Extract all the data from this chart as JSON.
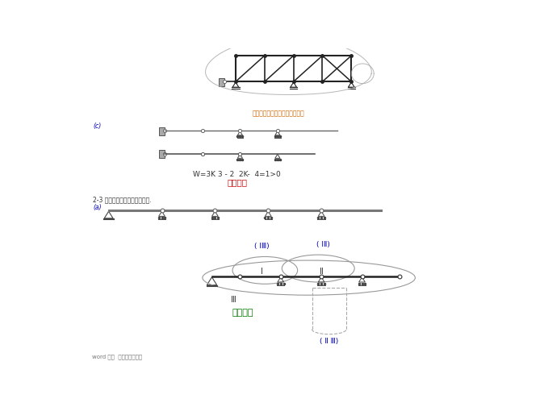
{
  "bg_color": "#ffffff",
  "title_text": "有一个多余约束的几何不变体系",
  "subtitle_text": "2-3 试分析图示体系的几何构造.",
  "label_c": "(c)",
  "label_a": "(a)",
  "formula_text": "W=3K 3 - 2  2K-  4=1>0",
  "formula_text2": "可变体系",
  "lbl_I_III": "( ⅠⅢ)",
  "lbl_I_II": "( ⅠⅡ)",
  "lbl_I": "Ⅰ",
  "lbl_II": "Ⅱ",
  "lbl_III": "Ⅲ",
  "lbl_geom": "几何不变",
  "lbl_II_III": "( Ⅱ Ⅲ)",
  "footer_text": "word 文件  可自由复制编辑",
  "color_truss": "#222222",
  "color_beam": "#555555",
  "color_support": "#444444",
  "color_orange": "#cc6600",
  "color_blue": "#0000bb",
  "color_red": "#cc0000",
  "color_green": "#007700",
  "color_dark": "#333333",
  "color_gray": "#888888"
}
